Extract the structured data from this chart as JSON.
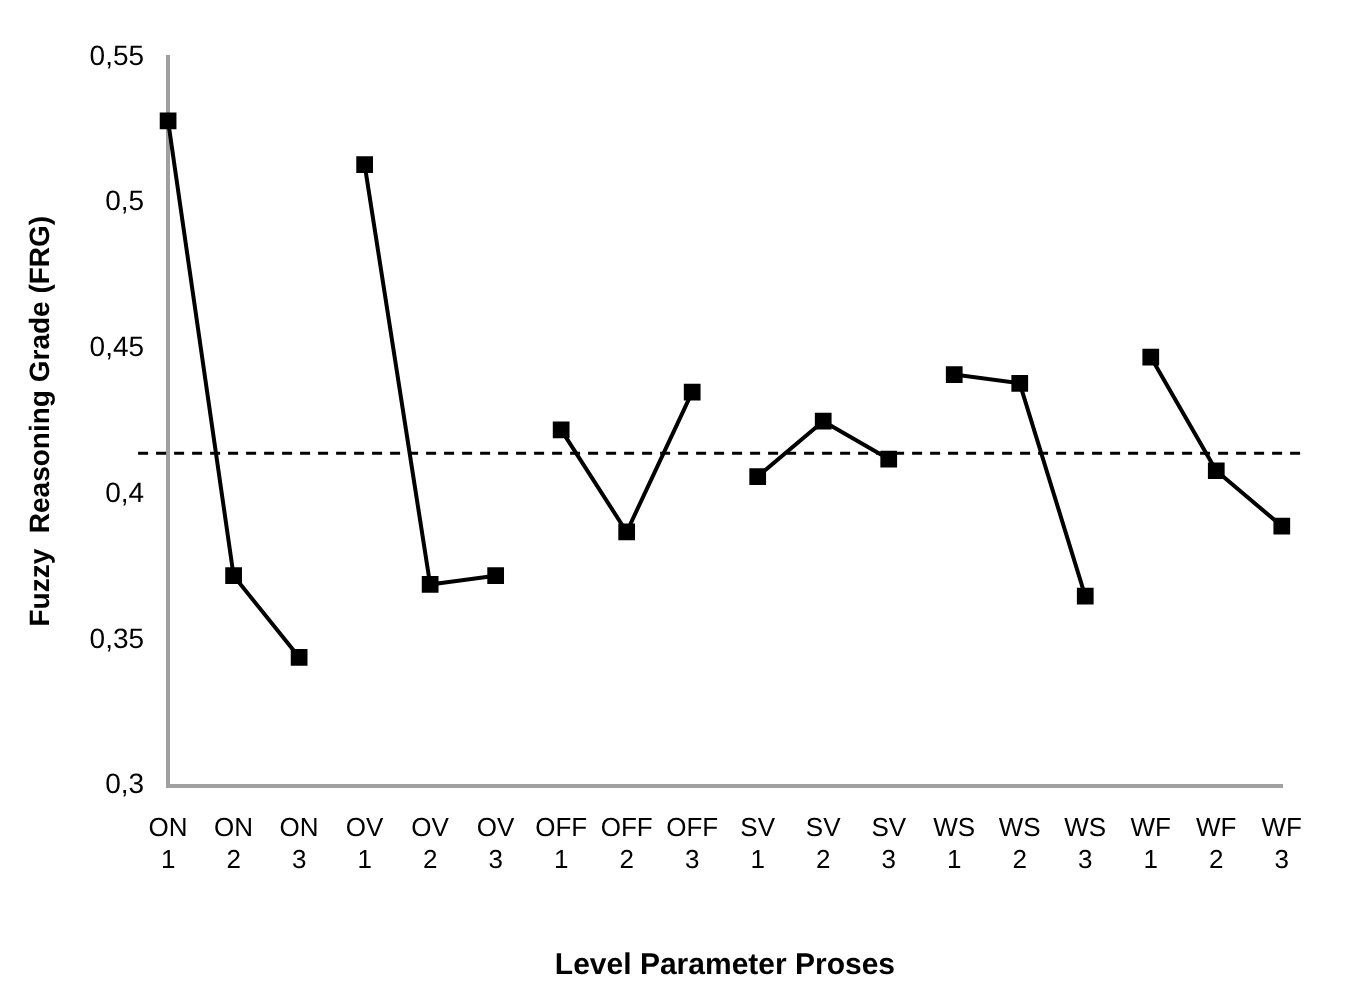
{
  "chart_data": {
    "type": "line",
    "ylabel": "Fuzzy  Reasoning Grade (FRG)",
    "xlabel": "Level Parameter Proses",
    "categories": [
      "ON 1",
      "ON 2",
      "ON 3",
      "OV 1",
      "OV 2",
      "OV 3",
      "OFF 1",
      "OFF 2",
      "OFF 3",
      "SV 1",
      "SV 2",
      "SV 3",
      "WS 1",
      "WS 2",
      "WS 3",
      "WF 1",
      "WF 2",
      "WF 3"
    ],
    "series": [
      {
        "color": "#000000",
        "values": [
          0.528,
          0.372,
          0.344,
          null,
          null,
          null,
          null,
          null,
          null,
          null,
          null,
          null,
          null,
          null,
          null,
          null,
          null,
          null
        ]
      },
      {
        "color": "#000000",
        "values": [
          null,
          null,
          null,
          0.513,
          0.369,
          0.372,
          null,
          null,
          null,
          null,
          null,
          null,
          null,
          null,
          null,
          null,
          null,
          null
        ]
      },
      {
        "color": "#000000",
        "values": [
          null,
          null,
          null,
          null,
          null,
          null,
          0.422,
          0.387,
          0.435,
          null,
          null,
          null,
          null,
          null,
          null,
          null,
          null,
          null
        ]
      },
      {
        "color": "#000000",
        "values": [
          null,
          null,
          null,
          null,
          null,
          null,
          null,
          null,
          null,
          0.406,
          0.425,
          0.412,
          null,
          null,
          null,
          null,
          null,
          null
        ]
      },
      {
        "color": "#000000",
        "values": [
          null,
          null,
          null,
          null,
          null,
          null,
          null,
          null,
          null,
          null,
          null,
          null,
          0.441,
          0.438,
          0.365,
          null,
          null,
          null
        ]
      },
      {
        "color": "#000000",
        "values": [
          null,
          null,
          null,
          null,
          null,
          null,
          null,
          null,
          null,
          null,
          null,
          null,
          null,
          null,
          null,
          0.447,
          0.408,
          0.389
        ]
      }
    ],
    "ylim": [
      0.3,
      0.55
    ],
    "yticks": [
      {
        "value": 0.3,
        "label": "0,3"
      },
      {
        "value": 0.35,
        "label": "0,35"
      },
      {
        "value": 0.4,
        "label": "0,4"
      },
      {
        "value": 0.45,
        "label": "0,45"
      },
      {
        "value": 0.5,
        "label": "0,5"
      },
      {
        "value": 0.55,
        "label": "0,55"
      }
    ],
    "ref_lines": [
      {
        "axis": "y",
        "value": 0.414,
        "color": "#000000",
        "line_style": "dashed"
      }
    ],
    "grid": false,
    "legend": false,
    "marker": "square",
    "line_style": "solid"
  }
}
